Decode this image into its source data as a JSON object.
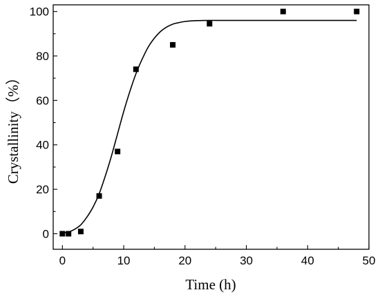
{
  "chart_data": {
    "type": "scatter",
    "title": "",
    "xlabel": "Time (h)",
    "ylabel": "Crystallinity（%）",
    "xlim": [
      -1.5,
      50
    ],
    "ylim": [
      -7,
      103
    ],
    "xticks": [
      0,
      10,
      20,
      30,
      40,
      50
    ],
    "yticks": [
      0,
      20,
      40,
      60,
      80,
      100
    ],
    "grid": false,
    "legend": "none",
    "series": [
      {
        "kind": "points",
        "marker": "square",
        "x": [
          0,
          1,
          3,
          6,
          9,
          12,
          18,
          24,
          36,
          48
        ],
        "y": [
          0,
          0,
          1,
          17,
          37,
          74,
          85,
          94.5,
          100,
          100
        ]
      },
      {
        "kind": "fit-curve",
        "x": [
          0,
          1,
          2,
          3,
          4,
          5,
          6,
          7,
          8,
          9,
          10,
          11,
          12,
          13,
          14,
          15,
          16,
          17,
          18,
          19,
          20,
          22,
          24,
          26,
          30,
          35,
          40,
          48
        ],
        "y": [
          0.3,
          0.8,
          2,
          4,
          7.5,
          12,
          18,
          26,
          35,
          45,
          55,
          64,
          72,
          78.5,
          84,
          88,
          91,
          93,
          94.3,
          95,
          95.5,
          95.9,
          96,
          96,
          96,
          96,
          96,
          96
        ]
      }
    ],
    "colors": {
      "points": "#000000",
      "curve": "#000000",
      "axes": "#000000"
    }
  }
}
